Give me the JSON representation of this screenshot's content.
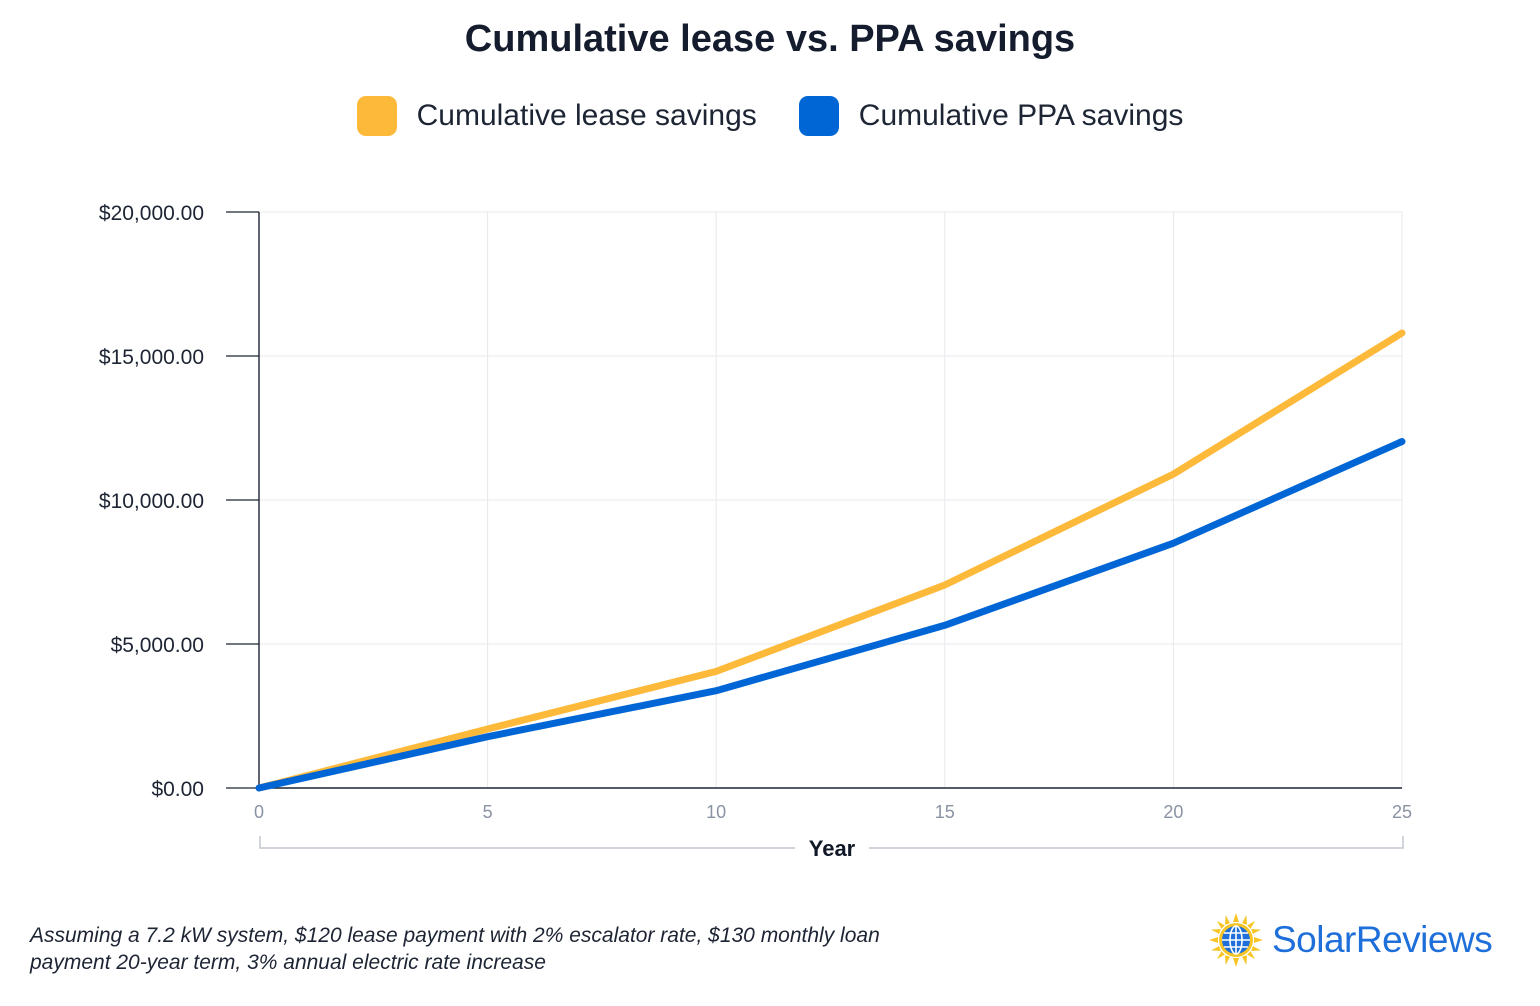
{
  "chart_data": {
    "type": "line",
    "title": "Cumulative lease vs. PPA savings",
    "xlabel": "Year",
    "ylabel": "",
    "x": [
      0,
      5,
      10,
      15,
      20,
      25
    ],
    "xlim": [
      0,
      25
    ],
    "ylim": [
      0,
      20000
    ],
    "x_ticks": [
      "0",
      "5",
      "10",
      "15",
      "20",
      "25"
    ],
    "y_ticks": [
      "$0.00",
      "$5,000.00",
      "$10,000.00",
      "$15,000.00",
      "$20,000.00"
    ],
    "y_tick_values": [
      0,
      5000,
      10000,
      15000,
      20000
    ],
    "series": [
      {
        "name": "Cumulative lease savings",
        "color": "#fdb93a",
        "values": [
          0,
          2050,
          4050,
          7050,
          10900,
          15800
        ]
      },
      {
        "name": "Cumulative PPA savings",
        "color": "#0066d6",
        "values": [
          0,
          1780,
          3380,
          5650,
          8500,
          12030
        ]
      }
    ],
    "grid": true,
    "legend": "top-center"
  },
  "footnote": {
    "line1": "Assuming a 7.2 kW system, $120 lease payment with 2% escalator rate, $130 monthly loan",
    "line2": "payment 20-year term, 3% annual electric rate increase"
  },
  "logo": {
    "text": "SolarReviews",
    "icon": "sun-globe-icon",
    "color": "#1e6fd9"
  }
}
